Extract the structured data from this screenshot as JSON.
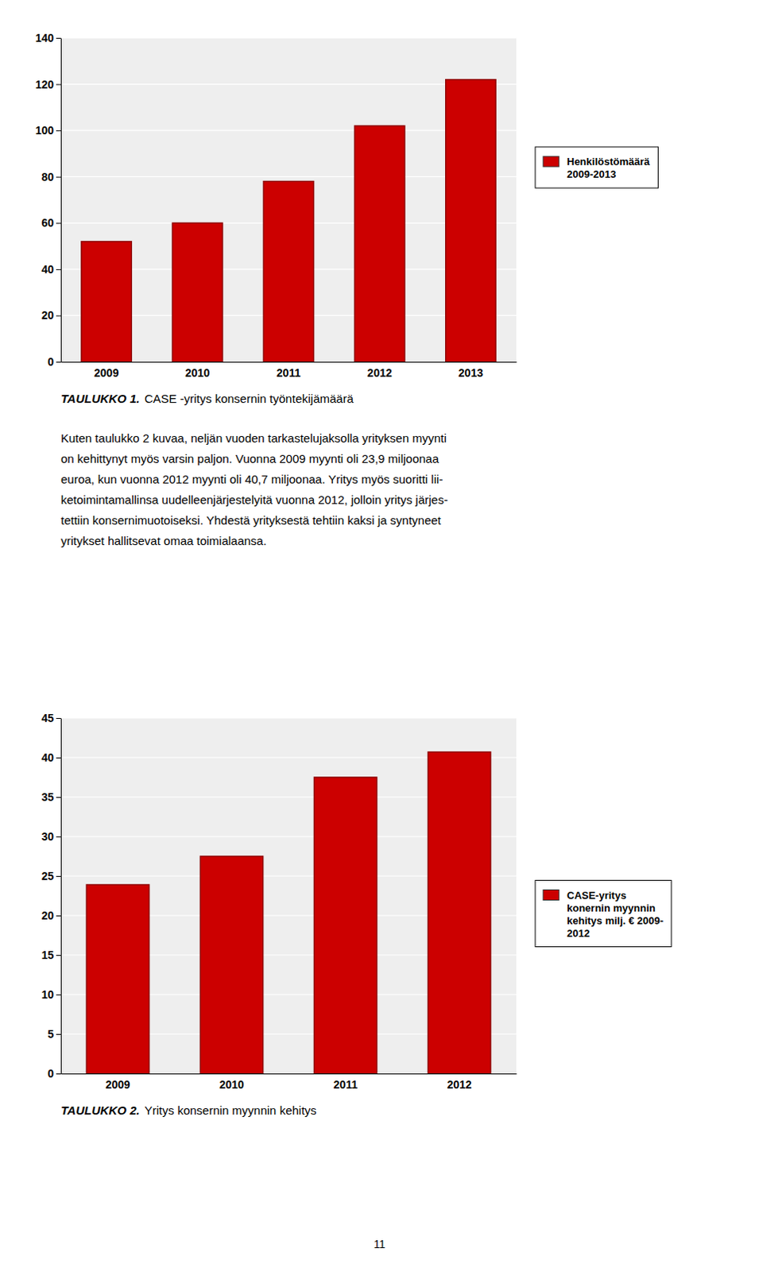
{
  "chart_data": [
    {
      "type": "bar",
      "title": "TAULUKKO 1.",
      "subtitle": "CASE -yritys konsernin työntekijämäärä",
      "categories": [
        "2009",
        "2010",
        "2011",
        "2012",
        "2013"
      ],
      "series": [
        {
          "name": "Henkilöstömäärä\n2009-2013",
          "color": "#CC0000",
          "values": [
            52,
            60,
            78,
            102,
            122
          ]
        }
      ],
      "ylim": [
        0,
        140
      ],
      "yticks": [
        0,
        20,
        40,
        60,
        80,
        100,
        120,
        140
      ],
      "grid": true,
      "legend": "right"
    },
    {
      "type": "bar",
      "title": "TAULUKKO 2.",
      "subtitle": "Yritys konsernin myynnin kehitys",
      "categories": [
        "2009",
        "2010",
        "2011",
        "2012"
      ],
      "series": [
        {
          "name": "CASE-yritys\nkonernin myynnin\nkehitys milj. € 2009-\n2012",
          "color": "#CC0000",
          "values": [
            23.9,
            27.5,
            37.5,
            40.7
          ]
        }
      ],
      "ylim": [
        0,
        45
      ],
      "yticks": [
        0,
        5,
        10,
        15,
        20,
        25,
        30,
        35,
        40,
        45
      ],
      "grid": true,
      "legend": "right"
    }
  ],
  "body_text": [
    "Kuten taulukko 2 kuvaa, neljän vuoden tarkastelujaksolla yrityksen myynti",
    "on kehittynyt myös varsin paljon. Vuonna 2009 myynti oli 23,9 miljoonaa",
    "euroa, kun vuonna 2012 myynti oli 40,7 miljoonaa. Yritys myös suoritti lii-",
    "ketoimintamallinsa uudelleenjärjestelyitä vuonna 2012, jolloin yritys järjes-",
    "tettiin konsernimuotoiseksi. Yhdestä yrityksestä tehtiin kaksi ja syntyneet",
    "yritykset hallitsevat omaa toimialaansa."
  ],
  "page_number": "11"
}
